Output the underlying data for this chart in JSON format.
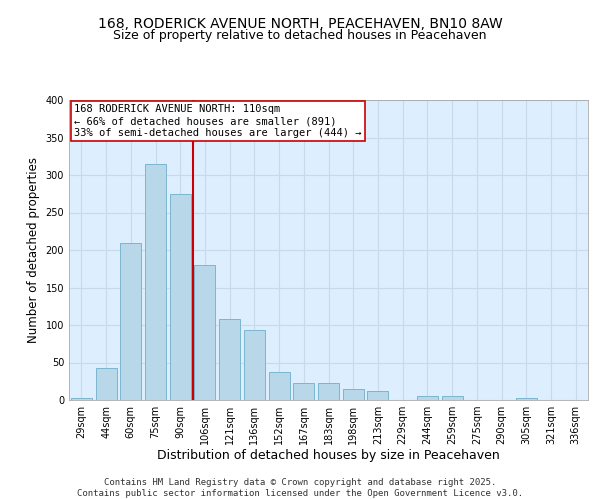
{
  "title_line1": "168, RODERICK AVENUE NORTH, PEACEHAVEN, BN10 8AW",
  "title_line2": "Size of property relative to detached houses in Peacehaven",
  "xlabel": "Distribution of detached houses by size in Peacehaven",
  "ylabel": "Number of detached properties",
  "categories": [
    "29sqm",
    "44sqm",
    "60sqm",
    "75sqm",
    "90sqm",
    "106sqm",
    "121sqm",
    "136sqm",
    "152sqm",
    "167sqm",
    "183sqm",
    "198sqm",
    "213sqm",
    "229sqm",
    "244sqm",
    "259sqm",
    "275sqm",
    "290sqm",
    "305sqm",
    "321sqm",
    "336sqm"
  ],
  "values": [
    3,
    43,
    210,
    315,
    275,
    180,
    108,
    93,
    38,
    23,
    23,
    15,
    12,
    0,
    5,
    5,
    0,
    0,
    3,
    0,
    0
  ],
  "bar_color": "#b8d8ea",
  "bar_edge_color": "#7ab5d0",
  "vline_color": "#cc0000",
  "vline_position": 4.5,
  "annotation_text": "168 RODERICK AVENUE NORTH: 110sqm\n← 66% of detached houses are smaller (891)\n33% of semi-detached houses are larger (444) →",
  "annotation_box_color": "white",
  "annotation_box_edge_color": "#cc0000",
  "annotation_fontsize": 7.5,
  "ylim": [
    0,
    400
  ],
  "yticks": [
    0,
    50,
    100,
    150,
    200,
    250,
    300,
    350,
    400
  ],
  "grid_color": "#c8daea",
  "background_color": "#ddeeff",
  "footer_text": "Contains HM Land Registry data © Crown copyright and database right 2025.\nContains public sector information licensed under the Open Government Licence v3.0.",
  "title_fontsize": 10,
  "subtitle_fontsize": 9,
  "xlabel_fontsize": 9,
  "ylabel_fontsize": 8.5,
  "tick_fontsize": 7,
  "footer_fontsize": 6.5
}
